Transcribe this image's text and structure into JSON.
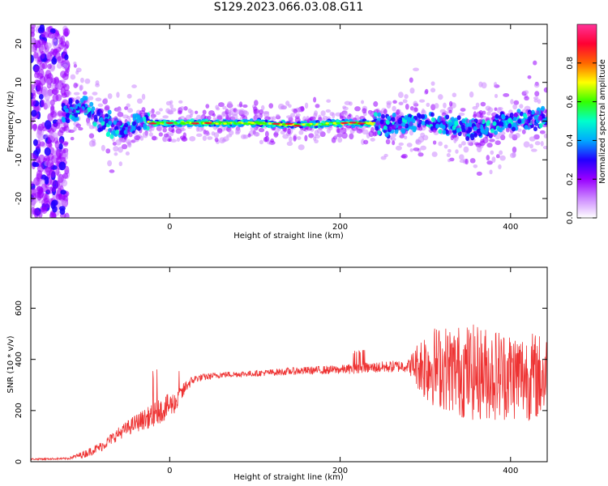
{
  "title": "S129.2023.066.03.08.G11",
  "chart_data": [
    {
      "type": "heatmap",
      "xlabel": "Height of straight line (km)",
      "ylabel": "Frequency (Hz)",
      "xlim": [
        -163,
        443
      ],
      "ylim": [
        -25,
        25
      ],
      "xticks": [
        0,
        200,
        400
      ],
      "yticks": [
        -20,
        -10,
        0,
        10,
        20
      ],
      "grid": false,
      "colorbar": {
        "label": "Normalized spectral amplitude",
        "range": [
          0,
          1
        ],
        "ticks": [
          0.0,
          0.2,
          0.4,
          0.6,
          0.8
        ],
        "colors": [
          "#ffffff",
          "#cc88ff",
          "#9900ff",
          "#2200ff",
          "#00aaff",
          "#00ffcc",
          "#33ff00",
          "#ffff00",
          "#ff6600",
          "#ff0033",
          "#ff3399"
        ]
      },
      "ridge": {
        "x": [
          -120,
          -100,
          -80,
          -60,
          -50,
          -40,
          -30,
          -20,
          0,
          50,
          100,
          150,
          200,
          230,
          260,
          300,
          350,
          400,
          440
        ],
        "y": [
          2,
          4,
          0,
          -2,
          -3,
          0,
          0,
          -0.5,
          -0.5,
          -0.5,
          -0.5,
          -1,
          -0.5,
          -0.5,
          -1,
          0,
          -2,
          0,
          1
        ]
      }
    },
    {
      "type": "line",
      "xlabel": "Height of straight line (km)",
      "ylabel": "SNR (10 * v/v)",
      "xlim": [
        -163,
        443
      ],
      "ylim": [
        0,
        760
      ],
      "xticks": [
        0,
        200,
        400
      ],
      "yticks": [
        0,
        200,
        400,
        600
      ],
      "grid": false,
      "series": [
        {
          "color": "#ee3333",
          "x": [
            -163,
            -120,
            -100,
            -80,
            -60,
            -40,
            -20,
            0,
            10,
            20,
            30,
            60,
            100,
            150,
            200,
            240,
            280,
            300,
            350,
            400,
            443
          ],
          "y": [
            10,
            12,
            30,
            60,
            110,
            150,
            180,
            220,
            240,
            300,
            325,
            340,
            345,
            355,
            360,
            368,
            375,
            380,
            350,
            340,
            330
          ],
          "noise": [
            3,
            4,
            15,
            20,
            25,
            35,
            45,
            50,
            40,
            25,
            15,
            12,
            12,
            15,
            18,
            22,
            25,
            150,
            190,
            180,
            170
          ]
        }
      ]
    }
  ]
}
